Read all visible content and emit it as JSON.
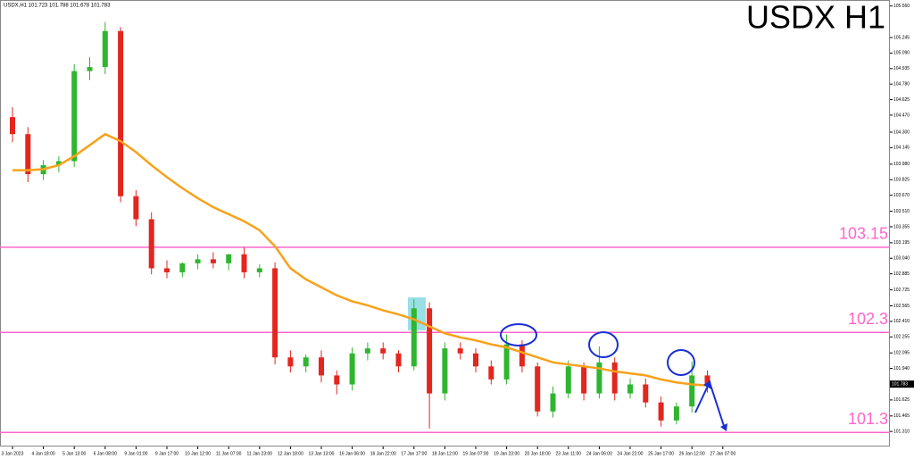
{
  "chart_data": {
    "type": "candlestick",
    "title": "USDX H1",
    "header": "USDX,H1  101.723 101.788 101.678 101.783",
    "last_price": 101.783,
    "categories": [
      "3 Jan 2023",
      null,
      "4 Jan 18:00",
      null,
      "5 Jan 13:00",
      null,
      "6 Jan 08:00",
      null,
      "9 Jan 01:00",
      null,
      "9 Jan 17:00",
      null,
      "10 Jan 12:00",
      null,
      "11 Jan 07:00",
      null,
      "11 Jan 23:00",
      null,
      "12 Jan 18:00",
      null,
      "13 Jan 13:00",
      null,
      "16 Jan 06:00",
      null,
      "16 Jan 22:00",
      null,
      "17 Jan 17:00",
      null,
      "18 Jan 12:00",
      null,
      "19 Jan 07:00",
      null,
      "19 Jan 23:00",
      null,
      "20 Jan 18:00",
      null,
      "23 Jan 11:00",
      null,
      "24 Jan 06:00",
      null,
      "24 Jan 22:00",
      null,
      "25 Jan 17:00",
      null,
      "26 Jan 12:00",
      null,
      "27 Jan 07:00"
    ],
    "open": [
      104.45,
      104.28,
      103.88,
      103.97,
      104.01,
      104.91,
      104.95,
      105.31,
      103.66,
      103.43,
      102.94,
      102.9,
      102.99,
      103.03,
      102.99,
      103.08,
      102.9,
      102.94,
      102.05,
      101.96,
      102.05,
      101.87,
      101.78,
      102.09,
      102.14,
      102.09,
      101.96,
      102.54,
      101.69,
      102.14,
      102.09,
      101.96,
      101.83,
      102.18,
      101.96,
      101.51,
      101.69,
      101.96,
      101.69,
      102.0,
      101.69,
      101.78,
      101.6,
      101.42,
      101.56,
      101.87,
      null
    ],
    "high": [
      104.55,
      104.35,
      104.02,
      104.06,
      104.98,
      105.05,
      105.4,
      105.35,
      103.72,
      103.5,
      103.02,
      103.0,
      103.08,
      103.1,
      103.08,
      103.15,
      102.98,
      103.0,
      102.12,
      102.08,
      102.12,
      101.92,
      102.15,
      102.2,
      102.2,
      102.12,
      102.63,
      102.6,
      102.2,
      102.2,
      102.14,
      102.02,
      102.28,
      102.22,
      102.0,
      101.76,
      102.02,
      102.0,
      102.16,
      102.05,
      101.84,
      101.84,
      101.66,
      101.6,
      102.01,
      101.92,
      null
    ],
    "low": [
      104.2,
      103.8,
      103.82,
      103.9,
      103.95,
      104.82,
      104.88,
      103.6,
      103.36,
      102.88,
      102.84,
      102.85,
      102.93,
      102.94,
      102.92,
      102.84,
      102.85,
      101.98,
      101.9,
      101.9,
      101.8,
      101.68,
      101.72,
      102.02,
      102.03,
      101.9,
      101.92,
      101.34,
      101.62,
      102.03,
      101.9,
      101.78,
      101.78,
      101.9,
      101.46,
      101.45,
      101.64,
      101.62,
      101.64,
      101.62,
      101.64,
      101.55,
      101.36,
      101.38,
      101.5,
      101.7,
      null
    ],
    "close": [
      104.28,
      103.88,
      103.97,
      104.01,
      104.91,
      104.95,
      105.31,
      103.66,
      103.43,
      102.94,
      102.9,
      102.99,
      103.03,
      102.99,
      103.08,
      102.9,
      102.94,
      102.05,
      101.96,
      102.05,
      101.87,
      101.78,
      102.09,
      102.14,
      102.09,
      101.96,
      102.54,
      101.69,
      102.14,
      102.09,
      101.96,
      101.83,
      102.18,
      101.96,
      101.51,
      101.69,
      101.96,
      101.69,
      102.0,
      101.69,
      101.78,
      101.6,
      101.42,
      101.56,
      101.87,
      101.783,
      null
    ],
    "up_color": "#2fb52f",
    "down_color": "#e3261e",
    "ma": {
      "color": "#f7a21b",
      "values": [
        103.92,
        103.92,
        103.93,
        103.97,
        104.06,
        104.17,
        104.28,
        104.21,
        104.1,
        103.97,
        103.85,
        103.74,
        103.64,
        103.55,
        103.48,
        103.41,
        103.32,
        103.16,
        102.94,
        102.83,
        102.75,
        102.67,
        102.61,
        102.57,
        102.52,
        102.48,
        102.43,
        102.36,
        102.29,
        102.25,
        102.22,
        102.18,
        102.15,
        102.1,
        102.05,
        102.0,
        101.98,
        101.96,
        101.94,
        101.91,
        101.89,
        101.87,
        101.83,
        101.8,
        101.78,
        101.77,
        null
      ]
    },
    "levels": [
      103.15,
      102.3,
      101.3
    ],
    "level_color": "#ff66cc",
    "ylim": [
      101.16,
      105.62
    ],
    "yticks": [
      {
        "value": 105.56,
        "label": "105.560"
      },
      {
        "value": 105.245,
        "label": "105.245"
      },
      {
        "value": 105.09,
        "label": "105.090"
      },
      {
        "value": 104.935,
        "label": "104.935"
      },
      {
        "value": 104.78,
        "label": "104.780"
      },
      {
        "value": 104.625,
        "label": "104.625"
      },
      {
        "value": 104.47,
        "label": "104.470"
      },
      {
        "value": 104.3,
        "label": "104.300"
      },
      {
        "value": 104.145,
        "label": "104.145"
      },
      {
        "value": 103.98,
        "label": "103.980"
      },
      {
        "value": 103.825,
        "label": "103.825"
      },
      {
        "value": 103.67,
        "label": "103.670"
      },
      {
        "value": 103.51,
        "label": "103.510"
      },
      {
        "value": 103.355,
        "label": "103.355"
      },
      {
        "value": 103.195,
        "label": "103.195"
      },
      {
        "value": 103.04,
        "label": "103.040"
      },
      {
        "value": 102.885,
        "label": "102.885"
      },
      {
        "value": 102.725,
        "label": "102.725"
      },
      {
        "value": 102.565,
        "label": "102.565"
      },
      {
        "value": 102.41,
        "label": "102.410"
      },
      {
        "value": 102.255,
        "label": "102.255"
      },
      {
        "value": 102.095,
        "label": "102.095"
      },
      {
        "value": 101.94,
        "label": "101.940"
      },
      {
        "value": 101.625,
        "label": "101.625"
      },
      {
        "value": 101.465,
        "label": "101.465"
      },
      {
        "value": 101.31,
        "label": "101.310"
      }
    ]
  }
}
